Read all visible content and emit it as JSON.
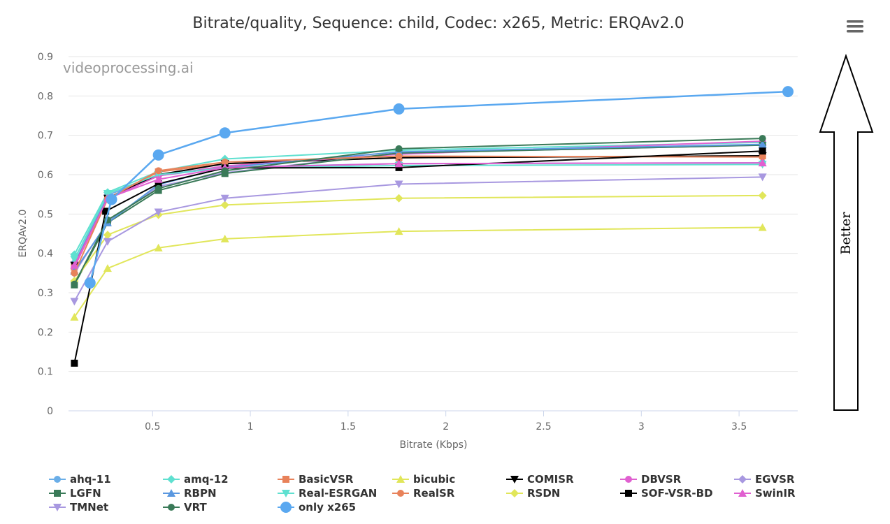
{
  "toolbar": {
    "menu_icon": "hamburger-menu-icon"
  },
  "annotation": {
    "better_label": "Better",
    "arrow_icon": "up-arrow-icon"
  },
  "chart_data": {
    "type": "line",
    "title": "Bitrate/quality, Sequence: child, Codec: x265, Metric: ERQAv2.0",
    "watermark": "videoprocessing.ai",
    "xlabel": "Bitrate (Kbps)",
    "ylabel": "ERQAv2.0",
    "xlim": [
      0.07,
      3.8
    ],
    "ylim": [
      0,
      0.9
    ],
    "x_ticks": [
      "0.5",
      "1",
      "1.5",
      "2",
      "2.5",
      "3",
      "3.5"
    ],
    "y_ticks": [
      "0",
      "0.1",
      "0.2",
      "0.3",
      "0.4",
      "0.5",
      "0.6",
      "0.7",
      "0.8",
      "0.9"
    ],
    "grid": true,
    "legend_position": "bottom",
    "series": [
      {
        "name": "ahq-11",
        "color": "#6aaee8",
        "marker": "circle",
        "x": [
          0.1,
          0.27,
          0.53,
          0.87,
          1.76,
          3.62
        ],
        "y": [
          0.375,
          0.548,
          0.597,
          0.619,
          0.628,
          0.63
        ]
      },
      {
        "name": "amq-12",
        "color": "#5fe0d0",
        "marker": "diamond",
        "x": [
          0.1,
          0.27,
          0.53,
          0.87,
          1.76,
          3.62
        ],
        "y": [
          0.397,
          0.555,
          0.608,
          0.64,
          0.662,
          0.682
        ]
      },
      {
        "name": "BasicVSR",
        "color": "#e8825a",
        "marker": "square",
        "x": [
          0.1,
          0.27,
          0.53,
          0.87,
          1.76,
          3.62
        ],
        "y": [
          0.365,
          0.54,
          0.607,
          0.628,
          0.643,
          0.648
        ]
      },
      {
        "name": "bicubic",
        "color": "#e1e65a",
        "marker": "triangle",
        "x": [
          0.1,
          0.27,
          0.53,
          0.87,
          1.76,
          3.62
        ],
        "y": [
          0.238,
          0.362,
          0.414,
          0.437,
          0.456,
          0.466
        ]
      },
      {
        "name": "COMISR",
        "color": "#000000",
        "marker": "triangle-down",
        "x": [
          0.1,
          0.27,
          0.53,
          0.87,
          1.76,
          3.62
        ],
        "y": [
          0.37,
          0.54,
          0.6,
          0.628,
          0.643,
          0.648
        ]
      },
      {
        "name": "DBVSR",
        "color": "#e060d0",
        "marker": "circle",
        "x": [
          0.1,
          0.27,
          0.53,
          0.87,
          1.76,
          3.62
        ],
        "y": [
          0.365,
          0.538,
          0.597,
          0.622,
          0.652,
          0.685
        ]
      },
      {
        "name": "EGVSR",
        "color": "#a898e0",
        "marker": "diamond",
        "x": [
          0.1,
          0.27,
          0.53,
          0.87,
          1.76,
          3.62
        ],
        "y": [
          0.35,
          0.48,
          0.57,
          0.605,
          0.655,
          0.675
        ]
      },
      {
        "name": "LGFN",
        "color": "#3a7a58",
        "marker": "square",
        "x": [
          0.1,
          0.27,
          0.53,
          0.87,
          1.76,
          3.62
        ],
        "y": [
          0.32,
          0.478,
          0.56,
          0.603,
          0.655,
          0.675
        ]
      },
      {
        "name": "RBPN",
        "color": "#5a98e0",
        "marker": "triangle",
        "x": [
          0.1,
          0.27,
          0.53,
          0.87,
          1.76,
          3.62
        ],
        "y": [
          0.355,
          0.478,
          0.575,
          0.618,
          0.658,
          0.677
        ]
      },
      {
        "name": "Real-ESRGAN",
        "color": "#5fe0d0",
        "marker": "triangle-down",
        "x": [
          0.1,
          0.27,
          0.53,
          0.87,
          1.76,
          3.62
        ],
        "y": [
          0.385,
          0.552,
          0.6,
          0.617,
          0.623,
          0.626
        ]
      },
      {
        "name": "RealSR",
        "color": "#e8825a",
        "marker": "circle",
        "x": [
          0.1,
          0.27,
          0.53,
          0.87,
          1.76,
          3.62
        ],
        "y": [
          0.35,
          0.538,
          0.61,
          0.632,
          0.647,
          0.645
        ]
      },
      {
        "name": "RSDN",
        "color": "#e1e65a",
        "marker": "diamond",
        "x": [
          0.1,
          0.27,
          0.53,
          0.87,
          1.76,
          3.62
        ],
        "y": [
          0.33,
          0.447,
          0.498,
          0.523,
          0.54,
          0.547
        ]
      },
      {
        "name": "SOF-VSR-BD",
        "color": "#000000",
        "marker": "square",
        "x": [
          0.1,
          0.26,
          0.53,
          0.87,
          1.76,
          3.62
        ],
        "y": [
          0.121,
          0.507,
          0.577,
          0.617,
          0.618,
          0.66
        ]
      },
      {
        "name": "SwinIR",
        "color": "#e060d0",
        "marker": "triangle",
        "x": [
          0.1,
          0.27,
          0.53,
          0.87,
          1.76,
          3.62
        ],
        "y": [
          0.37,
          0.54,
          0.588,
          0.618,
          0.628,
          0.63
        ]
      },
      {
        "name": "TMNet",
        "color": "#a898e0",
        "marker": "triangle-down",
        "x": [
          0.1,
          0.27,
          0.53,
          0.87,
          1.76,
          3.62
        ],
        "y": [
          0.278,
          0.43,
          0.505,
          0.54,
          0.576,
          0.594
        ]
      },
      {
        "name": "VRT",
        "color": "#3a7a58",
        "marker": "circle",
        "x": [
          0.1,
          0.27,
          0.53,
          0.87,
          1.76,
          3.62
        ],
        "y": [
          0.322,
          0.485,
          0.565,
          0.61,
          0.666,
          0.692
        ]
      },
      {
        "name": "only x265",
        "color": "#5aa8f0",
        "marker": "big-circle",
        "x": [
          0.18,
          0.29,
          0.53,
          0.87,
          1.76,
          3.75
        ],
        "y": [
          0.325,
          0.537,
          0.65,
          0.706,
          0.767,
          0.811
        ]
      }
    ]
  }
}
